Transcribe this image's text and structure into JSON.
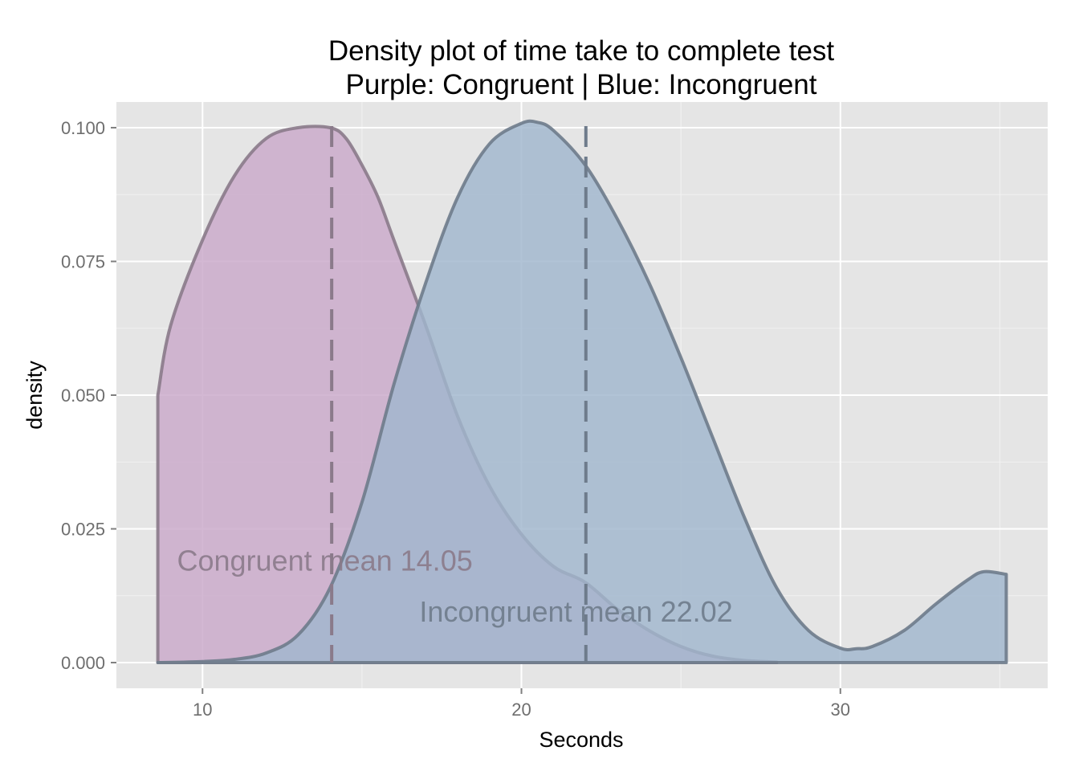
{
  "chart_data": {
    "type": "area",
    "title": "Density plot of time take to complete test",
    "subtitle": "Purple: Congruent | Blue: Incongruent",
    "xlabel": "Seconds",
    "ylabel": "density",
    "xlim": [
      7.3,
      36.5
    ],
    "ylim": [
      -0.0048,
      0.1048
    ],
    "x_ticks": [
      10,
      20,
      30
    ],
    "x_tick_labels": [
      "10",
      "20",
      "30"
    ],
    "y_ticks": [
      0,
      0.025,
      0.05,
      0.075,
      0.1
    ],
    "y_tick_labels": [
      "0.000",
      "0.025",
      "0.050",
      "0.075",
      "0.100"
    ],
    "grid": true,
    "colors": {
      "panel_bg": "#e5e5e5",
      "grid_major": "#ffffff",
      "grid_minor": "#f2f2f2",
      "congruent_fill": "#c9a8c9",
      "congruent_line": "#8a7a8a",
      "incongruent_fill": "#a0b6cd",
      "incongruent_line": "#6e7b8b"
    },
    "series": [
      {
        "name": "Congruent",
        "x": [
          8.6,
          9.0,
          10.0,
          11.0,
          12.0,
          13.0,
          14.0,
          14.5,
          15.0,
          15.5,
          16.0,
          17.0,
          18.0,
          19.0,
          20.0,
          21.0,
          22.0,
          23.0,
          24.0,
          25.0,
          26.0,
          27.0,
          28.0
        ],
        "y": [
          0.05,
          0.063,
          0.079,
          0.091,
          0.098,
          0.1,
          0.1,
          0.098,
          0.093,
          0.087,
          0.079,
          0.063,
          0.046,
          0.033,
          0.024,
          0.018,
          0.015,
          0.01,
          0.006,
          0.003,
          0.0012,
          0.0004,
          0.0001
        ],
        "mean": 14.05,
        "annotation": "Congruent mean 14.05"
      },
      {
        "name": "Incongruent",
        "x": [
          8.6,
          10.0,
          11.0,
          12.0,
          13.0,
          14.0,
          15.0,
          16.0,
          17.0,
          18.0,
          19.0,
          20.0,
          20.5,
          21.0,
          22.0,
          23.0,
          24.0,
          25.0,
          26.0,
          27.0,
          28.0,
          29.0,
          30.0,
          30.5,
          31.0,
          32.0,
          33.0,
          34.0,
          34.5,
          35.2
        ],
        "y": [
          0.0,
          0.0002,
          0.0006,
          0.0018,
          0.0052,
          0.014,
          0.03,
          0.052,
          0.071,
          0.087,
          0.097,
          0.1008,
          0.101,
          0.0995,
          0.093,
          0.083,
          0.071,
          0.057,
          0.042,
          0.027,
          0.014,
          0.006,
          0.0027,
          0.0026,
          0.003,
          0.006,
          0.011,
          0.0155,
          0.017,
          0.0165
        ],
        "mean": 22.02,
        "annotation": "Incongruent mean 22.02"
      }
    ],
    "annotations": [
      {
        "text": "Congruent mean 14.05",
        "x": 9.2,
        "y": 0.019
      },
      {
        "text": "Incongruent mean 22.02",
        "x": 16.8,
        "y": 0.0095
      }
    ]
  }
}
